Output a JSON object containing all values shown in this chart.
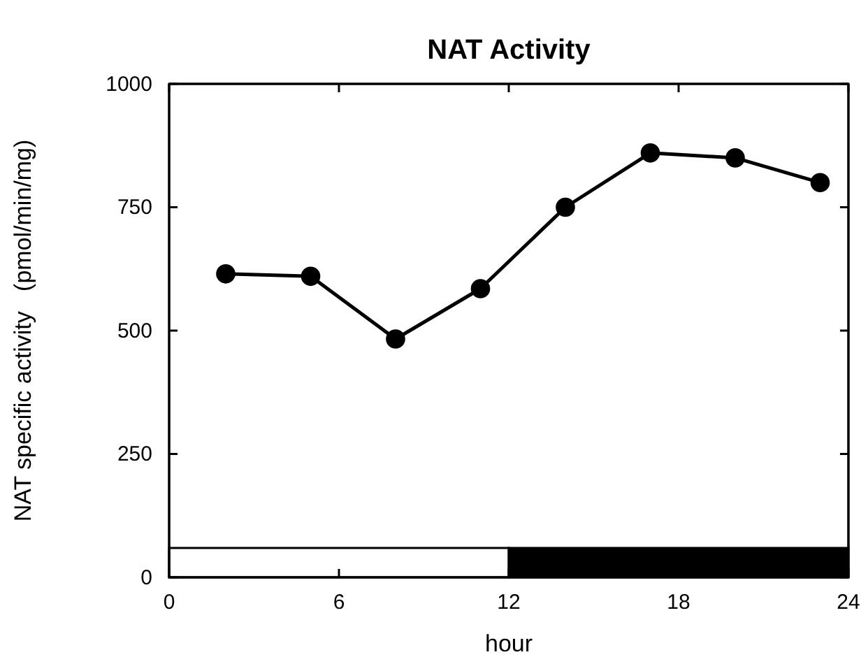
{
  "chart_data": {
    "type": "line",
    "title": "NAT Activity",
    "xlabel": "hour",
    "ylabel": "NAT specific activity   (pmol/min/mg)",
    "x": [
      2,
      5,
      8,
      11,
      14,
      17,
      20,
      23
    ],
    "series": [
      {
        "color": "#000000",
        "values": [
          615,
          610,
          483,
          585,
          750,
          860,
          850,
          800
        ]
      }
    ],
    "xlim": [
      0,
      24
    ],
    "xticks": [
      0,
      6,
      12,
      18,
      24
    ],
    "ylim": [
      0,
      1000
    ],
    "yticks": [
      0,
      250,
      500,
      750,
      1000
    ],
    "bands": [
      {
        "axis": "x",
        "from": 0,
        "to": 12,
        "label": null,
        "color": "#ffffff"
      },
      {
        "axis": "x",
        "from": 12,
        "to": 24,
        "label": null,
        "color": "#000000"
      }
    ],
    "grid": false,
    "marker": "circle",
    "line_style": "solid"
  }
}
